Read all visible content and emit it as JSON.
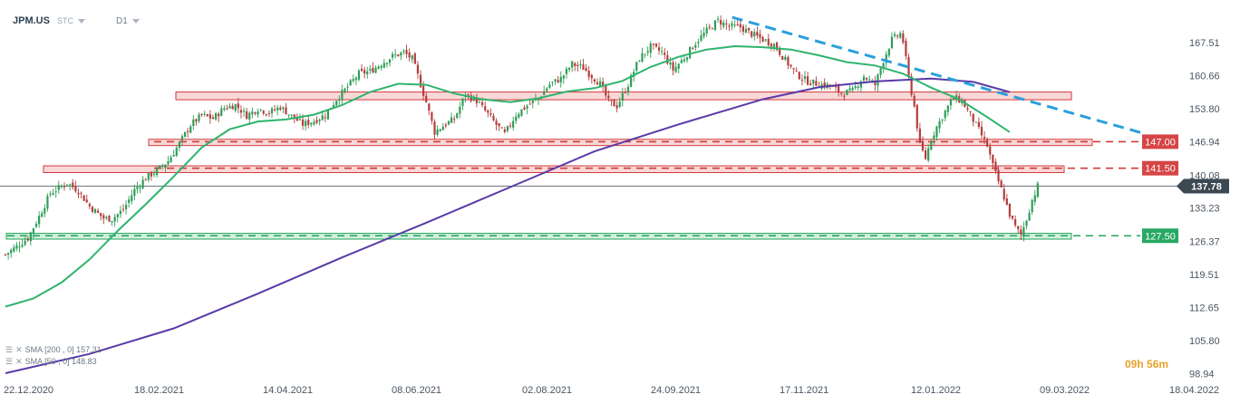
{
  "header": {
    "symbol": "JPM.US",
    "source": "STC",
    "timeframe": "D1"
  },
  "timer": {
    "hours": "09h",
    "minutes": "56m"
  },
  "legend": {
    "sma200": "SMA [200 , 0] 157.31",
    "sma50": "SMA [50 , 0] 148.83"
  },
  "colors": {
    "candle_up": "#2e9e57",
    "candle_down": "#b43d3d",
    "sma50": "#2fb36e",
    "sma200": "#5a3aa8",
    "trendline": "#2aa0dc",
    "resistance_fill": "#f7c8c8",
    "resistance_line": "#d23a3a",
    "support_fill": "#bfe9cf",
    "support_line": "#23a35c",
    "price_current": "#3c4852"
  },
  "chart_data": {
    "type": "candlestick",
    "x_labels": [
      "22.12.2020",
      "18.02.2021",
      "14.04.2021",
      "08.06.2021",
      "02.08.2021",
      "24.09.2021",
      "17.11.2021",
      "12.01.2022",
      "09.03.2022",
      "18.04.2022"
    ],
    "y_ticks": [
      98.94,
      105.8,
      112.65,
      119.51,
      126.37,
      133.23,
      140.08,
      146.94,
      153.8,
      160.66,
      167.51
    ],
    "ylim": [
      97.5,
      174.5
    ],
    "current_price": 137.78,
    "levels": [
      {
        "price": 147.0,
        "label": "147.00",
        "kind": "resistance"
      },
      {
        "price": 141.5,
        "label": "141.50",
        "kind": "resistance"
      },
      {
        "price": 127.5,
        "label": "127.50",
        "kind": "support"
      }
    ],
    "zones": [
      {
        "kind": "resistance",
        "x_from": 0.0,
        "x_to": 0.0,
        "low": 155.7,
        "high": 157.3
      },
      {
        "kind": "resistance",
        "x_from": 0.0,
        "x_to": 0.0,
        "low": 146.2,
        "high": 147.5
      },
      {
        "kind": "resistance",
        "x_from": 0.0,
        "x_to": 0.0,
        "low": 140.6,
        "high": 142.0
      },
      {
        "kind": "support",
        "x_from": 0.0,
        "x_to": 0.0,
        "low": 126.8,
        "high": 128.0
      }
    ],
    "close_path": [
      [
        0,
        123.6
      ],
      [
        8,
        127.0
      ],
      [
        12,
        131.5
      ],
      [
        16,
        136.3
      ],
      [
        22,
        138.5
      ],
      [
        26,
        136.8
      ],
      [
        30,
        133.6
      ],
      [
        35,
        131.1
      ],
      [
        38,
        131.0
      ],
      [
        42,
        132.9
      ],
      [
        46,
        137.0
      ],
      [
        50,
        139.5
      ],
      [
        54,
        141.0
      ],
      [
        58,
        143.0
      ],
      [
        62,
        146.6
      ],
      [
        66,
        150.5
      ],
      [
        70,
        152.5
      ],
      [
        74,
        151.8
      ],
      [
        78,
        154.0
      ],
      [
        82,
        154.6
      ],
      [
        86,
        152.4
      ],
      [
        90,
        153.9
      ],
      [
        94,
        153.0
      ],
      [
        98,
        154.2
      ],
      [
        102,
        152.3
      ],
      [
        106,
        150.6
      ],
      [
        110,
        151.3
      ],
      [
        114,
        152.6
      ],
      [
        118,
        155.8
      ],
      [
        122,
        158.4
      ],
      [
        126,
        161.1
      ],
      [
        130,
        161.6
      ],
      [
        134,
        163.2
      ],
      [
        138,
        164.7
      ],
      [
        142,
        165.5
      ],
      [
        145,
        164.2
      ],
      [
        147,
        160.7
      ],
      [
        150,
        155.2
      ],
      [
        153,
        149.0
      ],
      [
        156,
        150.3
      ],
      [
        160,
        151.7
      ],
      [
        164,
        156.8
      ],
      [
        168,
        155.5
      ],
      [
        172,
        152.7
      ],
      [
        175,
        150.5
      ],
      [
        178,
        148.6
      ],
      [
        182,
        152.6
      ],
      [
        186,
        154.5
      ],
      [
        190,
        156.0
      ],
      [
        194,
        158.9
      ],
      [
        198,
        160.1
      ],
      [
        202,
        163.1
      ],
      [
        206,
        162.3
      ],
      [
        209,
        160.6
      ],
      [
        212,
        159.0
      ],
      [
        215,
        155.3
      ],
      [
        218,
        154.4
      ],
      [
        222,
        158.9
      ],
      [
        226,
        164.3
      ],
      [
        230,
        166.7
      ],
      [
        234,
        165.6
      ],
      [
        238,
        161.9
      ],
      [
        242,
        164.4
      ],
      [
        246,
        167.5
      ],
      [
        250,
        170.0
      ],
      [
        254,
        172.1
      ],
      [
        258,
        170.9
      ],
      [
        262,
        170.8
      ],
      [
        266,
        169.3
      ],
      [
        270,
        168.2
      ],
      [
        274,
        167.1
      ],
      [
        278,
        163.9
      ],
      [
        282,
        161.0
      ],
      [
        286,
        159.5
      ],
      [
        290,
        158.9
      ],
      [
        294,
        158.6
      ],
      [
        298,
        157.0
      ],
      [
        302,
        157.5
      ],
      [
        306,
        160.6
      ],
      [
        310,
        158.8
      ],
      [
        313,
        163.9
      ],
      [
        316,
        168.2
      ],
      [
        319,
        169.4
      ],
      [
        320,
        167.8
      ],
      [
        322,
        160.2
      ],
      [
        324,
        154.3
      ],
      [
        326,
        146.2
      ],
      [
        328,
        143.6
      ],
      [
        330,
        147.6
      ],
      [
        332,
        150.1
      ],
      [
        335,
        153.3
      ],
      [
        338,
        156.2
      ],
      [
        341,
        155.4
      ],
      [
        344,
        152.5
      ],
      [
        347,
        149.4
      ],
      [
        350,
        146.1
      ],
      [
        352,
        142.0
      ],
      [
        354,
        138.7
      ],
      [
        356,
        135.5
      ],
      [
        358,
        131.9
      ],
      [
        360,
        129.3
      ],
      [
        362,
        127.7
      ],
      [
        364,
        131.0
      ],
      [
        366,
        134.9
      ],
      [
        368,
        137.8
      ]
    ],
    "sma50_path": [
      [
        0,
        112.8
      ],
      [
        10,
        114.5
      ],
      [
        20,
        117.8
      ],
      [
        30,
        122.6
      ],
      [
        40,
        128.5
      ],
      [
        50,
        134.0
      ],
      [
        60,
        139.8
      ],
      [
        70,
        145.8
      ],
      [
        80,
        149.6
      ],
      [
        90,
        151.2
      ],
      [
        100,
        151.6
      ],
      [
        110,
        152.6
      ],
      [
        120,
        154.6
      ],
      [
        130,
        157.3
      ],
      [
        140,
        159.0
      ],
      [
        150,
        158.8
      ],
      [
        160,
        157.0
      ],
      [
        170,
        155.8
      ],
      [
        180,
        155.2
      ],
      [
        190,
        156.0
      ],
      [
        200,
        157.4
      ],
      [
        210,
        158.1
      ],
      [
        220,
        159.6
      ],
      [
        230,
        162.5
      ],
      [
        240,
        164.6
      ],
      [
        250,
        166.1
      ],
      [
        260,
        166.8
      ],
      [
        270,
        166.6
      ],
      [
        280,
        166.1
      ],
      [
        290,
        164.9
      ],
      [
        300,
        163.5
      ],
      [
        310,
        162.8
      ],
      [
        320,
        161.1
      ],
      [
        330,
        158.2
      ],
      [
        340,
        155.8
      ],
      [
        350,
        152.1
      ],
      [
        358,
        149.0
      ]
    ],
    "sma200_path": [
      [
        0,
        99.0
      ],
      [
        30,
        103.0
      ],
      [
        60,
        108.3
      ],
      [
        90,
        115.5
      ],
      [
        120,
        123.0
      ],
      [
        150,
        130.2
      ],
      [
        180,
        137.6
      ],
      [
        210,
        145.0
      ],
      [
        240,
        150.6
      ],
      [
        270,
        155.8
      ],
      [
        290,
        158.3
      ],
      [
        310,
        159.5
      ],
      [
        330,
        160.1
      ],
      [
        345,
        159.4
      ],
      [
        358,
        157.3
      ]
    ],
    "trendline": [
      [
        250,
        172.8
      ],
      [
        380,
        147.2
      ]
    ]
  }
}
